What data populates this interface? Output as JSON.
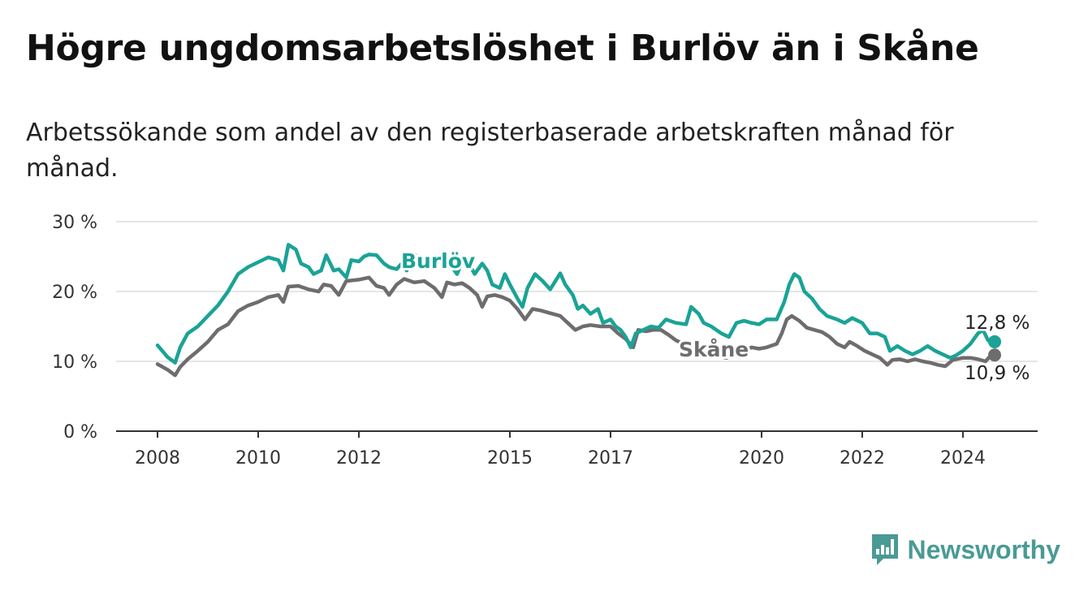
{
  "title": "Högre ungdomsarbetslöshet i Burlöv än i Skåne",
  "subtitle": "Arbetssökande som andel av den registerbaserade arbetskraften månad för månad.",
  "brand": {
    "name": "Newsworthy",
    "color": "#4a9a95"
  },
  "chart_data": {
    "type": "line",
    "title": "Högre ungdomsarbetslöshet i Burlöv än i Skåne",
    "xlabel": "",
    "ylabel": "",
    "ylim": [
      0,
      30
    ],
    "xlim": [
      2008,
      2024.63
    ],
    "yticks": [
      0,
      10,
      20,
      30
    ],
    "ytick_labels": [
      "0 %",
      "10 %",
      "20 %",
      "30 %"
    ],
    "xticks": [
      2008,
      2010,
      2012,
      2015,
      2017,
      2020,
      2022,
      2024
    ],
    "xtick_labels": [
      "2008",
      "2010",
      "2012",
      "2015",
      "2017",
      "2020",
      "2022",
      "2024"
    ],
    "grid": true,
    "series": [
      {
        "name": "Burlöv",
        "color": "#1aa396",
        "end_label": "12,8 %",
        "points": [
          [
            2008.0,
            12.3
          ],
          [
            2008.2,
            10.6
          ],
          [
            2008.35,
            9.8
          ],
          [
            2008.45,
            12.0
          ],
          [
            2008.6,
            14.0
          ],
          [
            2008.8,
            15.0
          ],
          [
            2009.0,
            16.5
          ],
          [
            2009.2,
            18.0
          ],
          [
            2009.4,
            20.0
          ],
          [
            2009.6,
            22.5
          ],
          [
            2009.8,
            23.5
          ],
          [
            2010.0,
            24.2
          ],
          [
            2010.2,
            24.9
          ],
          [
            2010.4,
            24.5
          ],
          [
            2010.5,
            23.0
          ],
          [
            2010.6,
            26.7
          ],
          [
            2010.75,
            26.0
          ],
          [
            2010.85,
            24.0
          ],
          [
            2011.0,
            23.5
          ],
          [
            2011.1,
            22.5
          ],
          [
            2011.25,
            23.0
          ],
          [
            2011.35,
            25.2
          ],
          [
            2011.5,
            23.0
          ],
          [
            2011.6,
            23.2
          ],
          [
            2011.75,
            22.0
          ],
          [
            2011.85,
            24.5
          ],
          [
            2012.0,
            24.3
          ],
          [
            2012.1,
            25.0
          ],
          [
            2012.2,
            25.3
          ],
          [
            2012.35,
            25.2
          ],
          [
            2012.5,
            24.0
          ],
          [
            2012.6,
            23.5
          ],
          [
            2012.75,
            23.2
          ],
          [
            2012.85,
            24.0
          ],
          [
            2012.95,
            23.0
          ],
          [
            2013.1,
            25.3
          ],
          [
            2013.25,
            24.5
          ],
          [
            2013.4,
            23.5
          ],
          [
            2013.5,
            24.5
          ],
          [
            2013.65,
            25.0
          ],
          [
            2013.8,
            24.0
          ],
          [
            2013.95,
            22.5
          ],
          [
            2014.05,
            24.3
          ],
          [
            2014.2,
            23.8
          ],
          [
            2014.3,
            22.5
          ],
          [
            2014.45,
            24.0
          ],
          [
            2014.55,
            23.0
          ],
          [
            2014.65,
            21.0
          ],
          [
            2014.8,
            20.5
          ],
          [
            2014.9,
            22.5
          ],
          [
            2015.0,
            21.0
          ],
          [
            2015.15,
            19.0
          ],
          [
            2015.25,
            17.8
          ],
          [
            2015.35,
            20.5
          ],
          [
            2015.5,
            22.5
          ],
          [
            2015.65,
            21.5
          ],
          [
            2015.8,
            20.3
          ],
          [
            2016.0,
            22.6
          ],
          [
            2016.1,
            21.0
          ],
          [
            2016.25,
            19.5
          ],
          [
            2016.35,
            17.5
          ],
          [
            2016.45,
            18.0
          ],
          [
            2016.6,
            16.8
          ],
          [
            2016.75,
            17.5
          ],
          [
            2016.85,
            15.5
          ],
          [
            2017.0,
            16.0
          ],
          [
            2017.1,
            15.0
          ],
          [
            2017.2,
            14.5
          ],
          [
            2017.3,
            13.5
          ],
          [
            2017.4,
            12.0
          ],
          [
            2017.5,
            14.0
          ],
          [
            2017.65,
            14.5
          ],
          [
            2017.8,
            15.0
          ],
          [
            2017.95,
            14.8
          ],
          [
            2018.1,
            16.0
          ],
          [
            2018.3,
            15.5
          ],
          [
            2018.5,
            15.3
          ],
          [
            2018.6,
            17.8
          ],
          [
            2018.75,
            16.8
          ],
          [
            2018.85,
            15.5
          ],
          [
            2019.0,
            15.0
          ],
          [
            2019.2,
            14.0
          ],
          [
            2019.35,
            13.5
          ],
          [
            2019.5,
            15.5
          ],
          [
            2019.65,
            15.8
          ],
          [
            2019.8,
            15.5
          ],
          [
            2019.95,
            15.3
          ],
          [
            2020.1,
            16.0
          ],
          [
            2020.3,
            16.0
          ],
          [
            2020.45,
            18.5
          ],
          [
            2020.55,
            21.0
          ],
          [
            2020.65,
            22.5
          ],
          [
            2020.75,
            22.0
          ],
          [
            2020.85,
            20.0
          ],
          [
            2021.0,
            19.0
          ],
          [
            2021.15,
            17.5
          ],
          [
            2021.3,
            16.5
          ],
          [
            2021.5,
            16.0
          ],
          [
            2021.65,
            15.5
          ],
          [
            2021.8,
            16.2
          ],
          [
            2022.0,
            15.5
          ],
          [
            2022.15,
            14.0
          ],
          [
            2022.3,
            14.0
          ],
          [
            2022.45,
            13.5
          ],
          [
            2022.55,
            11.5
          ],
          [
            2022.7,
            12.2
          ],
          [
            2022.85,
            11.5
          ],
          [
            2023.0,
            11.0
          ],
          [
            2023.15,
            11.5
          ],
          [
            2023.3,
            12.2
          ],
          [
            2023.45,
            11.5
          ],
          [
            2023.6,
            11.0
          ],
          [
            2023.75,
            10.5
          ],
          [
            2023.85,
            10.8
          ],
          [
            2024.0,
            11.5
          ],
          [
            2024.15,
            12.5
          ],
          [
            2024.3,
            14.0
          ],
          [
            2024.4,
            14.5
          ],
          [
            2024.5,
            13.0
          ],
          [
            2024.63,
            12.8
          ]
        ]
      },
      {
        "name": "Skåne",
        "color": "#6e6c6f",
        "end_label": "10,9 %",
        "points": [
          [
            2008.0,
            9.6
          ],
          [
            2008.2,
            8.8
          ],
          [
            2008.35,
            8.0
          ],
          [
            2008.45,
            9.2
          ],
          [
            2008.6,
            10.3
          ],
          [
            2008.8,
            11.5
          ],
          [
            2009.0,
            12.8
          ],
          [
            2009.2,
            14.5
          ],
          [
            2009.4,
            15.3
          ],
          [
            2009.6,
            17.2
          ],
          [
            2009.8,
            18.0
          ],
          [
            2010.0,
            18.5
          ],
          [
            2010.2,
            19.2
          ],
          [
            2010.4,
            19.5
          ],
          [
            2010.5,
            18.5
          ],
          [
            2010.6,
            20.7
          ],
          [
            2010.8,
            20.8
          ],
          [
            2011.0,
            20.3
          ],
          [
            2011.2,
            20.0
          ],
          [
            2011.3,
            21.0
          ],
          [
            2011.45,
            20.8
          ],
          [
            2011.6,
            19.5
          ],
          [
            2011.75,
            21.5
          ],
          [
            2012.0,
            21.7
          ],
          [
            2012.2,
            22.0
          ],
          [
            2012.35,
            20.8
          ],
          [
            2012.5,
            20.5
          ],
          [
            2012.6,
            19.5
          ],
          [
            2012.75,
            21.0
          ],
          [
            2012.9,
            21.8
          ],
          [
            2013.1,
            21.3
          ],
          [
            2013.3,
            21.5
          ],
          [
            2013.5,
            20.5
          ],
          [
            2013.65,
            19.2
          ],
          [
            2013.75,
            21.3
          ],
          [
            2013.9,
            21.0
          ],
          [
            2014.05,
            21.2
          ],
          [
            2014.2,
            20.5
          ],
          [
            2014.35,
            19.5
          ],
          [
            2014.45,
            17.8
          ],
          [
            2014.55,
            19.3
          ],
          [
            2014.7,
            19.5
          ],
          [
            2014.85,
            19.2
          ],
          [
            2015.0,
            18.7
          ],
          [
            2015.15,
            17.5
          ],
          [
            2015.3,
            16.0
          ],
          [
            2015.45,
            17.5
          ],
          [
            2015.6,
            17.3
          ],
          [
            2015.75,
            17.0
          ],
          [
            2016.0,
            16.5
          ],
          [
            2016.15,
            15.5
          ],
          [
            2016.3,
            14.5
          ],
          [
            2016.45,
            15.0
          ],
          [
            2016.6,
            15.2
          ],
          [
            2016.8,
            15.0
          ],
          [
            2017.0,
            15.0
          ],
          [
            2017.15,
            14.0
          ],
          [
            2017.3,
            13.2
          ],
          [
            2017.45,
            12.0
          ],
          [
            2017.55,
            14.5
          ],
          [
            2017.7,
            14.3
          ],
          [
            2017.85,
            14.5
          ],
          [
            2018.0,
            14.5
          ],
          [
            2018.15,
            13.8
          ],
          [
            2018.3,
            13.0
          ],
          [
            2018.45,
            12.5
          ],
          [
            2018.6,
            12.0
          ],
          [
            2018.75,
            11.5
          ],
          [
            2018.9,
            11.0
          ],
          [
            2019.1,
            10.8
          ],
          [
            2019.3,
            10.5
          ],
          [
            2019.5,
            11.0
          ],
          [
            2019.65,
            11.5
          ],
          [
            2019.8,
            12.0
          ],
          [
            2019.95,
            11.8
          ],
          [
            2020.1,
            12.0
          ],
          [
            2020.3,
            12.5
          ],
          [
            2020.4,
            14.0
          ],
          [
            2020.5,
            16.0
          ],
          [
            2020.6,
            16.5
          ],
          [
            2020.75,
            15.8
          ],
          [
            2020.9,
            14.8
          ],
          [
            2021.05,
            14.5
          ],
          [
            2021.2,
            14.2
          ],
          [
            2021.35,
            13.5
          ],
          [
            2021.5,
            12.5
          ],
          [
            2021.65,
            12.0
          ],
          [
            2021.75,
            12.8
          ],
          [
            2021.9,
            12.2
          ],
          [
            2022.05,
            11.5
          ],
          [
            2022.2,
            11.0
          ],
          [
            2022.35,
            10.5
          ],
          [
            2022.5,
            9.5
          ],
          [
            2022.6,
            10.2
          ],
          [
            2022.75,
            10.3
          ],
          [
            2022.9,
            10.0
          ],
          [
            2023.05,
            10.3
          ],
          [
            2023.2,
            10.0
          ],
          [
            2023.35,
            9.8
          ],
          [
            2023.5,
            9.5
          ],
          [
            2023.65,
            9.3
          ],
          [
            2023.8,
            10.2
          ],
          [
            2024.0,
            10.5
          ],
          [
            2024.15,
            10.5
          ],
          [
            2024.3,
            10.3
          ],
          [
            2024.45,
            10.0
          ],
          [
            2024.55,
            10.8
          ],
          [
            2024.63,
            10.9
          ]
        ]
      }
    ]
  }
}
